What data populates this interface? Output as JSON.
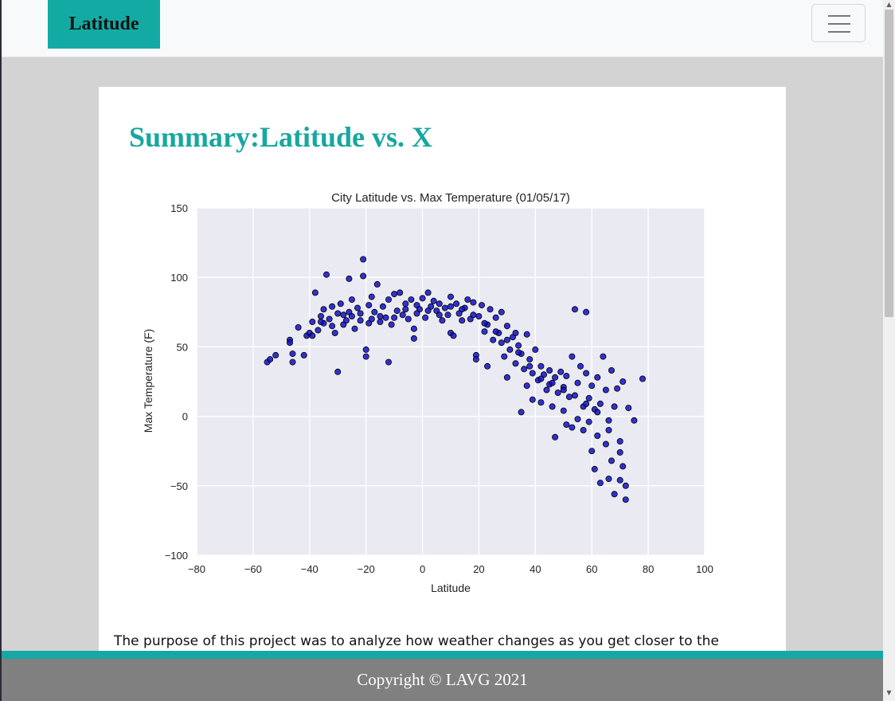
{
  "navbar": {
    "brand": "Latitude",
    "menu_icon": "hamburger-menu-icon"
  },
  "main": {
    "title": "Summary:Latitude vs. X",
    "paragraph": "The purpose of this project was to analyze how weather changes as you get closer to the"
  },
  "footer": {
    "text": "Copyright © LAVG 2021"
  },
  "colors": {
    "brand": "#14aaa4",
    "title": "#17a7a0",
    "footer": "#808080",
    "marker": "#1010c8",
    "plot_bg": "#eaeaf2"
  },
  "chart_data": {
    "type": "scatter",
    "title": "City Latitude vs. Max Temperature (01/05/17)",
    "xlabel": "Latitude",
    "ylabel": "Max Temperature (F)",
    "xlim": [
      -80,
      100
    ],
    "ylim": [
      -100,
      150
    ],
    "xticks": [
      "−80",
      "−60",
      "−40",
      "−20",
      "0",
      "20",
      "40",
      "60",
      "80",
      "100"
    ],
    "yticks": [
      "150",
      "100",
      "50",
      "0",
      "−50",
      "−100"
    ],
    "grid": true,
    "points": [
      [
        -55,
        39
      ],
      [
        -54,
        41
      ],
      [
        -52,
        44
      ],
      [
        -47,
        55
      ],
      [
        -47,
        53
      ],
      [
        -46,
        45
      ],
      [
        -46,
        39
      ],
      [
        -44,
        64
      ],
      [
        -42,
        44
      ],
      [
        -41,
        58
      ],
      [
        -40,
        60
      ],
      [
        -39,
        68
      ],
      [
        -38,
        89
      ],
      [
        -37,
        62
      ],
      [
        -36,
        72
      ],
      [
        -35,
        77
      ],
      [
        -35,
        67
      ],
      [
        -34,
        102
      ],
      [
        -33,
        70
      ],
      [
        -32,
        79
      ],
      [
        -31,
        60
      ],
      [
        -30,
        32
      ],
      [
        -30,
        74
      ],
      [
        -29,
        81
      ],
      [
        -28,
        66
      ],
      [
        -27,
        69
      ],
      [
        -26,
        99
      ],
      [
        -26,
        75
      ],
      [
        -25,
        84
      ],
      [
        -24,
        63
      ],
      [
        -23,
        78
      ],
      [
        -22,
        69
      ],
      [
        -21,
        113
      ],
      [
        -21,
        101
      ],
      [
        -20,
        48
      ],
      [
        -20,
        43
      ],
      [
        -19,
        80
      ],
      [
        -19,
        67
      ],
      [
        -18,
        86
      ],
      [
        -17,
        75
      ],
      [
        -16,
        95
      ],
      [
        -15,
        68
      ],
      [
        -14,
        79
      ],
      [
        -13,
        71
      ],
      [
        -12,
        39
      ],
      [
        -12,
        84
      ],
      [
        -11,
        66
      ],
      [
        -10,
        88
      ],
      [
        -9,
        76
      ],
      [
        -8,
        89
      ],
      [
        -7,
        73
      ],
      [
        -6,
        81
      ],
      [
        -5,
        70
      ],
      [
        -4,
        84
      ],
      [
        -3,
        63
      ],
      [
        -3,
        56
      ],
      [
        -2,
        80
      ],
      [
        -1,
        77
      ],
      [
        0,
        85
      ],
      [
        1,
        71
      ],
      [
        2,
        89
      ],
      [
        3,
        79
      ],
      [
        4,
        83
      ],
      [
        5,
        76
      ],
      [
        6,
        81
      ],
      [
        7,
        69
      ],
      [
        8,
        78
      ],
      [
        9,
        73
      ],
      [
        10,
        60
      ],
      [
        10,
        86
      ],
      [
        11,
        58
      ],
      [
        12,
        81
      ],
      [
        13,
        74
      ],
      [
        14,
        69
      ],
      [
        15,
        78
      ],
      [
        16,
        84
      ],
      [
        17,
        70
      ],
      [
        18,
        82
      ],
      [
        19,
        44
      ],
      [
        19,
        41
      ],
      [
        20,
        72
      ],
      [
        21,
        80
      ],
      [
        22,
        61
      ],
      [
        23,
        36
      ],
      [
        23,
        66
      ],
      [
        24,
        77
      ],
      [
        25,
        55
      ],
      [
        26,
        71
      ],
      [
        27,
        60
      ],
      [
        28,
        75
      ],
      [
        28,
        53
      ],
      [
        29,
        43
      ],
      [
        30,
        65
      ],
      [
        30,
        28
      ],
      [
        31,
        48
      ],
      [
        32,
        57
      ],
      [
        33,
        60
      ],
      [
        33,
        38
      ],
      [
        34,
        51
      ],
      [
        35,
        45
      ],
      [
        35,
        3
      ],
      [
        36,
        34
      ],
      [
        37,
        59
      ],
      [
        37,
        22
      ],
      [
        38,
        41
      ],
      [
        39,
        31
      ],
      [
        39,
        12
      ],
      [
        40,
        48
      ],
      [
        41,
        26
      ],
      [
        42,
        36
      ],
      [
        42,
        10
      ],
      [
        43,
        30
      ],
      [
        44,
        19
      ],
      [
        45,
        33
      ],
      [
        45,
        23
      ],
      [
        46,
        7
      ],
      [
        47,
        28
      ],
      [
        47,
        -15
      ],
      [
        48,
        17
      ],
      [
        49,
        32
      ],
      [
        50,
        4
      ],
      [
        50,
        21
      ],
      [
        51,
        -6
      ],
      [
        51,
        29
      ],
      [
        52,
        14
      ],
      [
        53,
        43
      ],
      [
        53,
        -8
      ],
      [
        54,
        77
      ],
      [
        55,
        -2
      ],
      [
        55,
        24
      ],
      [
        56,
        36
      ],
      [
        57,
        7
      ],
      [
        57,
        -10
      ],
      [
        58,
        75
      ],
      [
        58,
        31
      ],
      [
        59,
        -4
      ],
      [
        59,
        13
      ],
      [
        60,
        22
      ],
      [
        60,
        -25
      ],
      [
        61,
        5
      ],
      [
        61,
        -38
      ],
      [
        62,
        -14
      ],
      [
        62,
        28
      ],
      [
        63,
        -48
      ],
      [
        63,
        9
      ],
      [
        64,
        43
      ],
      [
        65,
        -20
      ],
      [
        65,
        19
      ],
      [
        66,
        -3
      ],
      [
        66,
        -45
      ],
      [
        67,
        33
      ],
      [
        67,
        -32
      ],
      [
        68,
        7
      ],
      [
        68,
        -56
      ],
      [
        69,
        20
      ],
      [
        70,
        -18
      ],
      [
        70,
        -46
      ],
      [
        71,
        -36
      ],
      [
        71,
        25
      ],
      [
        72,
        -50
      ],
      [
        72,
        -60
      ],
      [
        73,
        6
      ],
      [
        75,
        -3
      ],
      [
        78,
        27
      ],
      [
        -39,
        58
      ],
      [
        -36,
        68
      ],
      [
        -32,
        65
      ],
      [
        -28,
        73
      ],
      [
        -25,
        72
      ],
      [
        -22,
        74
      ],
      [
        -18,
        70
      ],
      [
        -15,
        72
      ],
      [
        -10,
        71
      ],
      [
        -6,
        77
      ],
      [
        -2,
        74
      ],
      [
        2,
        76
      ],
      [
        6,
        73
      ],
      [
        10,
        79
      ],
      [
        14,
        77
      ],
      [
        18,
        73
      ],
      [
        22,
        67
      ],
      [
        26,
        61
      ],
      [
        30,
        55
      ],
      [
        34,
        46
      ],
      [
        38,
        36
      ],
      [
        42,
        27
      ],
      [
        46,
        24
      ],
      [
        50,
        19
      ],
      [
        54,
        15
      ],
      [
        58,
        9
      ],
      [
        62,
        3
      ],
      [
        66,
        -10
      ],
      [
        70,
        -26
      ]
    ]
  }
}
